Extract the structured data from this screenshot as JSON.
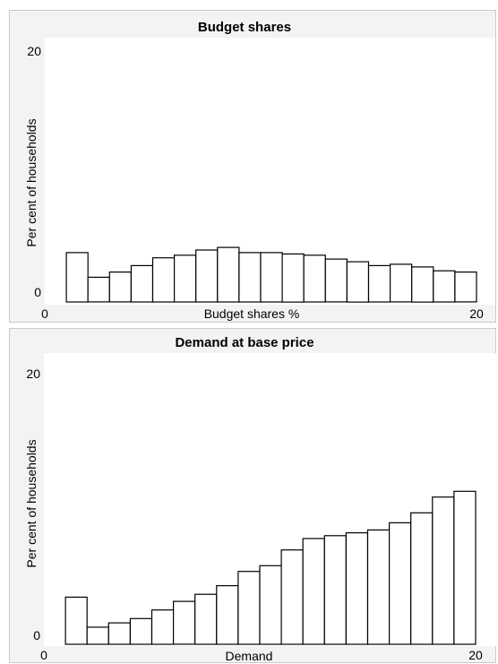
{
  "chart_data": [
    {
      "type": "bar",
      "title": "Budget shares",
      "xlabel": "Budget shares %",
      "ylabel": "Per cent of households",
      "xlim": [
        0,
        20
      ],
      "ylim": [
        0,
        20
      ],
      "x_ticks": [
        "0",
        "20"
      ],
      "y_ticks": [
        "0",
        "20"
      ],
      "grid": false,
      "bar_width": 1,
      "x": [
        1,
        2,
        3,
        4,
        5,
        6,
        7,
        8,
        9,
        10,
        11,
        12,
        13,
        14,
        15,
        16,
        17,
        18,
        19,
        20
      ],
      "values": [
        3.8,
        1.9,
        2.3,
        2.8,
        3.4,
        3.6,
        4.0,
        4.2,
        3.8,
        3.8,
        3.7,
        3.6,
        3.3,
        3.1,
        2.8,
        2.9,
        2.7,
        2.4,
        2.3,
        0
      ]
    },
    {
      "type": "bar",
      "title": "Demand at base price",
      "xlabel": "Demand",
      "ylabel": "Per cent of households",
      "xlim": [
        0,
        20
      ],
      "ylim": [
        0,
        20
      ],
      "x_ticks": [
        "0",
        "20"
      ],
      "y_ticks": [
        "0",
        "20"
      ],
      "grid": false,
      "bar_width": 1,
      "x": [
        1,
        2,
        3,
        4,
        5,
        6,
        7,
        8,
        9,
        10,
        11,
        12,
        13,
        14,
        15,
        16,
        17,
        18,
        19,
        20
      ],
      "values": [
        3.3,
        1.2,
        1.5,
        1.8,
        2.4,
        3.0,
        3.5,
        4.1,
        5.1,
        5.5,
        6.6,
        7.4,
        7.6,
        7.8,
        8.0,
        8.5,
        9.2,
        10.3,
        10.7,
        0
      ]
    }
  ]
}
